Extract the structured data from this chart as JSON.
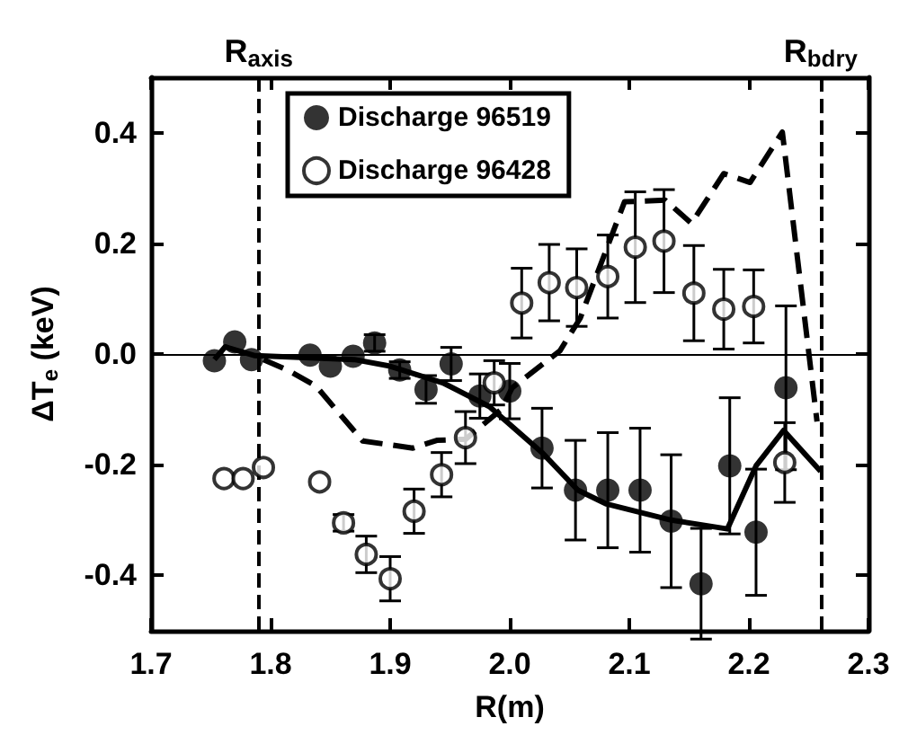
{
  "chart_data": {
    "type": "scatter",
    "xlabel": "R(m)",
    "ylabel": "ΔT$_{e}$ (keV)",
    "xlim": [
      1.7,
      2.3
    ],
    "xticks": [
      {
        "value": 1.7,
        "label": "1.7"
      },
      {
        "value": 1.8,
        "label": "1.8"
      },
      {
        "value": 1.9,
        "label": "1.9"
      },
      {
        "value": 2.0,
        "label": "2.0"
      },
      {
        "value": 2.1,
        "label": "2.1"
      },
      {
        "value": 2.2,
        "label": "2.2"
      },
      {
        "value": 2.3,
        "label": "2.3"
      }
    ],
    "ylim": [
      -0.5,
      0.5
    ],
    "yticks": [
      {
        "value": -0.4,
        "label": "-0.4"
      },
      {
        "value": -0.2,
        "label": "-0.2"
      },
      {
        "value": 0,
        "label": "0.0"
      },
      {
        "value": 0.2,
        "label": "0.2"
      },
      {
        "value": 0.4,
        "label": "0.4"
      }
    ],
    "grid": false,
    "legend": "top left",
    "ref_lines": [
      {
        "axis": "x",
        "value": 1.79,
        "label": "R$_{axis}$",
        "line_style": "dashed",
        "color": "#000000"
      },
      {
        "axis": "x",
        "value": 2.262,
        "label": "R$_{bdry}$",
        "line_style": "dashed",
        "color": "#000000"
      },
      {
        "axis": "y",
        "value": 0,
        "line_style": "solid",
        "color": "#000000"
      }
    ],
    "series": [
      {
        "name": "Discharge 96519",
        "color": "#000000",
        "marker": "circle",
        "x": [
          1.753,
          1.77,
          1.784,
          1.833,
          1.85,
          1.869,
          1.887,
          1.908,
          1.93,
          1.951,
          1.975,
          2.0,
          2.027,
          2.055,
          2.082,
          2.109,
          2.135,
          2.16,
          2.184,
          2.206,
          2.231
        ],
        "values": [
          -0.012,
          0.022,
          -0.01,
          -0.002,
          -0.022,
          -0.004,
          0.02,
          -0.029,
          -0.064,
          -0.018,
          -0.076,
          -0.067,
          -0.17,
          -0.246,
          -0.246,
          -0.246,
          -0.302,
          -0.415,
          -0.202,
          -0.322,
          -0.061
        ],
        "errors": [
          null,
          null,
          null,
          null,
          null,
          null,
          0.015,
          0.015,
          0.025,
          0.03,
          0.04,
          0.05,
          0.072,
          0.09,
          0.104,
          0.112,
          0.12,
          0.1,
          0.123,
          0.114,
          0.148
        ]
      },
      {
        "name": "Discharge 96428",
        "color": "#000000",
        "marker": "open circle",
        "x": [
          1.761,
          1.777,
          1.794,
          1.841,
          1.861,
          1.88,
          1.9,
          1.92,
          1.943,
          1.963,
          1.987,
          2.01,
          2.033,
          2.056,
          2.082,
          2.105,
          2.129,
          2.154,
          2.179,
          2.204,
          2.23
        ],
        "values": [
          -0.225,
          -0.225,
          -0.205,
          -0.231,
          -0.305,
          -0.362,
          -0.406,
          -0.284,
          -0.218,
          -0.151,
          -0.052,
          0.092,
          0.129,
          0.12,
          0.14,
          0.193,
          0.204,
          0.11,
          0.081,
          0.086,
          -0.196
        ],
        "errors": [
          null,
          null,
          null,
          null,
          0.015,
          0.033,
          0.04,
          0.04,
          0.04,
          0.047,
          0.04,
          0.063,
          0.069,
          0.07,
          0.075,
          0.1,
          0.093,
          0.086,
          0.072,
          0.066,
          0.072
        ]
      },
      {
        "type": "line",
        "color": "#000000",
        "line_style": "solid",
        "marker": "none",
        "x": [
          1.753,
          1.762,
          1.787,
          1.87,
          1.9,
          1.944,
          1.983,
          2.027,
          2.057,
          2.081,
          2.135,
          2.182,
          2.206,
          2.229,
          2.26
        ],
        "values": [
          -0.01,
          0.013,
          -0.003,
          -0.01,
          -0.022,
          -0.052,
          -0.095,
          -0.178,
          -0.246,
          -0.271,
          -0.3,
          -0.316,
          -0.202,
          -0.138,
          -0.212
        ]
      },
      {
        "type": "line",
        "color": "#000000",
        "line_style": "dashed",
        "marker": "none",
        "x": [
          1.794,
          1.816,
          1.838,
          1.877,
          1.919,
          1.939,
          1.963,
          1.993,
          2.002,
          2.042,
          2.059,
          2.096,
          2.13,
          2.152,
          2.179,
          2.201,
          2.228,
          2.257
        ],
        "values": [
          -0.01,
          -0.031,
          -0.058,
          -0.157,
          -0.17,
          -0.156,
          -0.154,
          -0.1,
          -0.061,
          0.006,
          0.065,
          0.275,
          0.278,
          0.236,
          0.326,
          0.31,
          0.401,
          -0.122
        ]
      }
    ]
  }
}
